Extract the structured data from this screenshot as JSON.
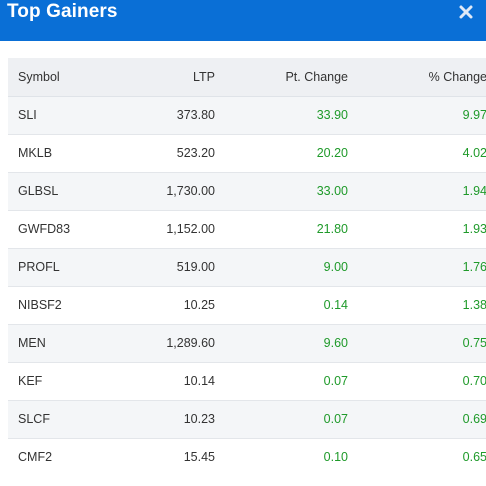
{
  "header": {
    "title": "Top Gainers",
    "close_icon": "close-icon",
    "background_color": "#0a6fd6"
  },
  "table": {
    "columns": [
      "Symbol",
      "LTP",
      "Pt. Change",
      "% Change"
    ],
    "rows": [
      {
        "symbol": "SLI",
        "ltp": "373.80",
        "pt_change": "33.90",
        "pct_change": "9.97"
      },
      {
        "symbol": "MKLB",
        "ltp": "523.20",
        "pt_change": "20.20",
        "pct_change": "4.02"
      },
      {
        "symbol": "GLBSL",
        "ltp": "1,730.00",
        "pt_change": "33.00",
        "pct_change": "1.94"
      },
      {
        "symbol": "GWFD83",
        "ltp": "1,152.00",
        "pt_change": "21.80",
        "pct_change": "1.93"
      },
      {
        "symbol": "PROFL",
        "ltp": "519.00",
        "pt_change": "9.00",
        "pct_change": "1.76"
      },
      {
        "symbol": "NIBSF2",
        "ltp": "10.25",
        "pt_change": "0.14",
        "pct_change": "1.38"
      },
      {
        "symbol": "MEN",
        "ltp": "1,289.60",
        "pt_change": "9.60",
        "pct_change": "0.75"
      },
      {
        "symbol": "KEF",
        "ltp": "10.14",
        "pt_change": "0.07",
        "pct_change": "0.70"
      },
      {
        "symbol": "SLCF",
        "ltp": "10.23",
        "pt_change": "0.07",
        "pct_change": "0.69"
      },
      {
        "symbol": "CMF2",
        "ltp": "15.45",
        "pt_change": "0.10",
        "pct_change": "0.65"
      }
    ],
    "positive_color": "#1f9a2a"
  }
}
